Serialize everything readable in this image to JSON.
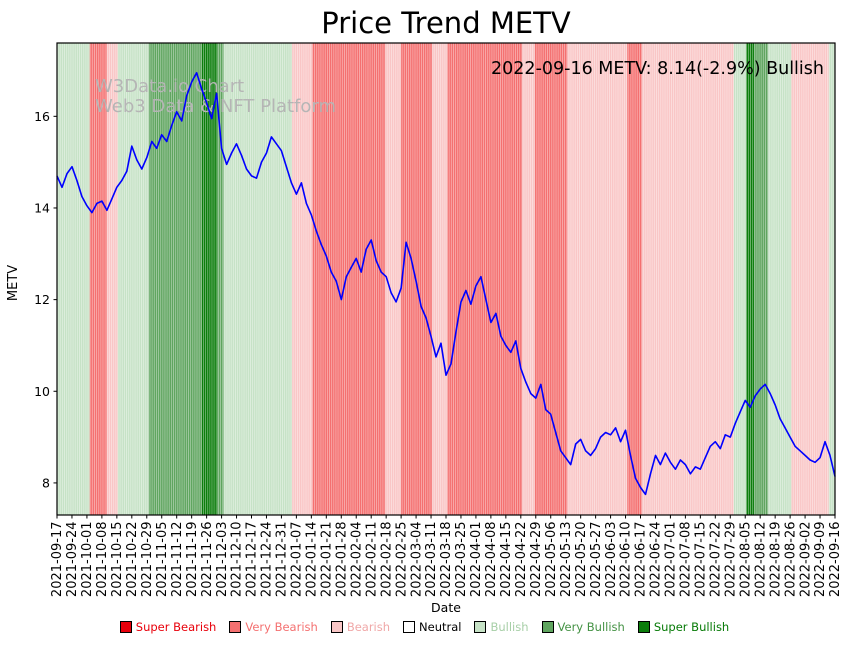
{
  "title": "Price Trend METV",
  "watermark": {
    "line1": "W3Data.io Chart",
    "line2": "Web3 Data & NFT Platform"
  },
  "chart_data": {
    "type": "line",
    "title": "Price Trend METV",
    "annotation": "2022-09-16 METV: 8.14(-2.9%) Bullish",
    "xlabel": "Date",
    "ylabel": "METV",
    "ylim": [
      7.3,
      17.6
    ],
    "yticks": [
      8,
      10,
      12,
      14,
      16
    ],
    "grid": false,
    "legend_position": "bottom",
    "line_color": "#0000ff",
    "x_tick_labels": [
      "2021-09-17",
      "2021-09-24",
      "2021-10-01",
      "2021-10-08",
      "2021-10-15",
      "2021-10-22",
      "2021-10-29",
      "2021-11-05",
      "2021-11-12",
      "2021-11-19",
      "2021-11-26",
      "2021-12-03",
      "2021-12-10",
      "2021-12-17",
      "2021-12-24",
      "2021-12-31",
      "2022-01-07",
      "2022-01-14",
      "2022-01-21",
      "2022-01-28",
      "2022-02-04",
      "2022-02-11",
      "2022-02-18",
      "2022-02-25",
      "2022-03-04",
      "2022-03-11",
      "2022-03-18",
      "2022-03-25",
      "2022-04-01",
      "2022-04-08",
      "2022-04-15",
      "2022-04-22",
      "2022-04-29",
      "2022-05-06",
      "2022-05-13",
      "2022-05-20",
      "2022-05-27",
      "2022-06-03",
      "2022-06-10",
      "2022-06-17",
      "2022-06-24",
      "2022-07-01",
      "2022-07-08",
      "2022-07-15",
      "2022-07-22",
      "2022-07-29",
      "2022-08-05",
      "2022-08-12",
      "2022-08-19",
      "2022-08-26",
      "2022-09-02",
      "2022-09-09",
      "2022-09-16"
    ],
    "series": [
      {
        "name": "METV",
        "values": [
          14.7,
          14.45,
          14.75,
          14.9,
          14.6,
          14.25,
          14.05,
          13.9,
          14.1,
          14.15,
          13.95,
          14.2,
          14.45,
          14.6,
          14.8,
          15.35,
          15.05,
          14.85,
          15.1,
          15.45,
          15.3,
          15.6,
          15.45,
          15.8,
          16.1,
          15.9,
          16.45,
          16.75,
          16.95,
          16.6,
          16.3,
          15.95,
          16.5,
          15.3,
          14.95,
          15.2,
          15.4,
          15.15,
          14.85,
          14.7,
          14.65,
          15.0,
          15.2,
          15.55,
          15.4,
          15.25,
          14.9,
          14.55,
          14.3,
          14.55,
          14.1,
          13.85,
          13.5,
          13.2,
          12.95,
          12.6,
          12.4,
          12.0,
          12.5,
          12.7,
          12.9,
          12.6,
          13.1,
          13.3,
          12.85,
          12.6,
          12.5,
          12.15,
          11.95,
          12.25,
          13.25,
          12.9,
          12.4,
          11.85,
          11.6,
          11.2,
          10.75,
          11.05,
          10.35,
          10.6,
          11.3,
          11.95,
          12.2,
          11.9,
          12.3,
          12.5,
          12.0,
          11.5,
          11.7,
          11.2,
          11.0,
          10.85,
          11.1,
          10.5,
          10.2,
          9.95,
          9.85,
          10.15,
          9.6,
          9.5,
          9.1,
          8.7,
          8.55,
          8.4,
          8.85,
          8.95,
          8.7,
          8.6,
          8.75,
          9.0,
          9.1,
          9.05,
          9.2,
          8.9,
          9.15,
          8.6,
          8.1,
          7.9,
          7.75,
          8.2,
          8.6,
          8.4,
          8.65,
          8.45,
          8.3,
          8.5,
          8.4,
          8.2,
          8.35,
          8.3,
          8.55,
          8.8,
          8.9,
          8.75,
          9.05,
          9.0,
          9.3,
          9.55,
          9.8,
          9.65,
          9.9,
          10.05,
          10.15,
          9.95,
          9.7,
          9.4,
          9.2,
          9.0,
          8.8,
          8.7,
          8.6,
          8.5,
          8.45,
          8.55,
          8.9,
          8.6,
          8.14
        ]
      }
    ],
    "sentiment_colors": {
      "super-bearish": "#e8000b",
      "very-bearish": "#f47070",
      "bearish": "#f9c6c6",
      "neutral": "#ffffff",
      "bullish": "#c6e2c6",
      "very-bullish": "#5fa55f",
      "super-bullish": "#0b7d0b"
    },
    "sentiment_bands": [
      {
        "start": 0.0,
        "end": 0.042,
        "level": "bullish"
      },
      {
        "start": 0.042,
        "end": 0.064,
        "level": "very-bearish"
      },
      {
        "start": 0.064,
        "end": 0.078,
        "level": "bearish"
      },
      {
        "start": 0.078,
        "end": 0.118,
        "level": "bullish"
      },
      {
        "start": 0.118,
        "end": 0.186,
        "level": "very-bullish"
      },
      {
        "start": 0.186,
        "end": 0.206,
        "level": "super-bullish"
      },
      {
        "start": 0.206,
        "end": 0.214,
        "level": "very-bullish"
      },
      {
        "start": 0.214,
        "end": 0.302,
        "level": "bullish"
      },
      {
        "start": 0.302,
        "end": 0.328,
        "level": "bearish"
      },
      {
        "start": 0.328,
        "end": 0.422,
        "level": "very-bearish"
      },
      {
        "start": 0.422,
        "end": 0.442,
        "level": "bearish"
      },
      {
        "start": 0.442,
        "end": 0.482,
        "level": "very-bearish"
      },
      {
        "start": 0.482,
        "end": 0.502,
        "level": "bearish"
      },
      {
        "start": 0.502,
        "end": 0.598,
        "level": "very-bearish"
      },
      {
        "start": 0.598,
        "end": 0.614,
        "level": "bearish"
      },
      {
        "start": 0.614,
        "end": 0.656,
        "level": "very-bearish"
      },
      {
        "start": 0.656,
        "end": 0.733,
        "level": "bearish"
      },
      {
        "start": 0.733,
        "end": 0.752,
        "level": "very-bearish"
      },
      {
        "start": 0.752,
        "end": 0.87,
        "level": "bearish"
      },
      {
        "start": 0.87,
        "end": 0.886,
        "level": "bullish"
      },
      {
        "start": 0.886,
        "end": 0.896,
        "level": "super-bullish"
      },
      {
        "start": 0.896,
        "end": 0.914,
        "level": "very-bullish"
      },
      {
        "start": 0.914,
        "end": 0.944,
        "level": "bullish"
      },
      {
        "start": 0.944,
        "end": 0.992,
        "level": "bearish"
      },
      {
        "start": 0.992,
        "end": 1.0,
        "level": "bullish"
      }
    ],
    "legend": [
      {
        "label": "Super Bearish",
        "color": "#e8000b",
        "text_color": "#e8000b"
      },
      {
        "label": "Very Bearish",
        "color": "#f47070",
        "text_color": "#f47070"
      },
      {
        "label": "Bearish",
        "color": "#f9c6c6",
        "text_color": "#f0a8a8"
      },
      {
        "label": "Neutral",
        "color": "#ffffff",
        "text_color": "#000000"
      },
      {
        "label": "Bullish",
        "color": "#c6e2c6",
        "text_color": "#a7cfa7"
      },
      {
        "label": "Very Bullish",
        "color": "#5fa55f",
        "text_color": "#449244"
      },
      {
        "label": "Super Bullish",
        "color": "#0b7d0b",
        "text_color": "#067a06"
      }
    ]
  }
}
